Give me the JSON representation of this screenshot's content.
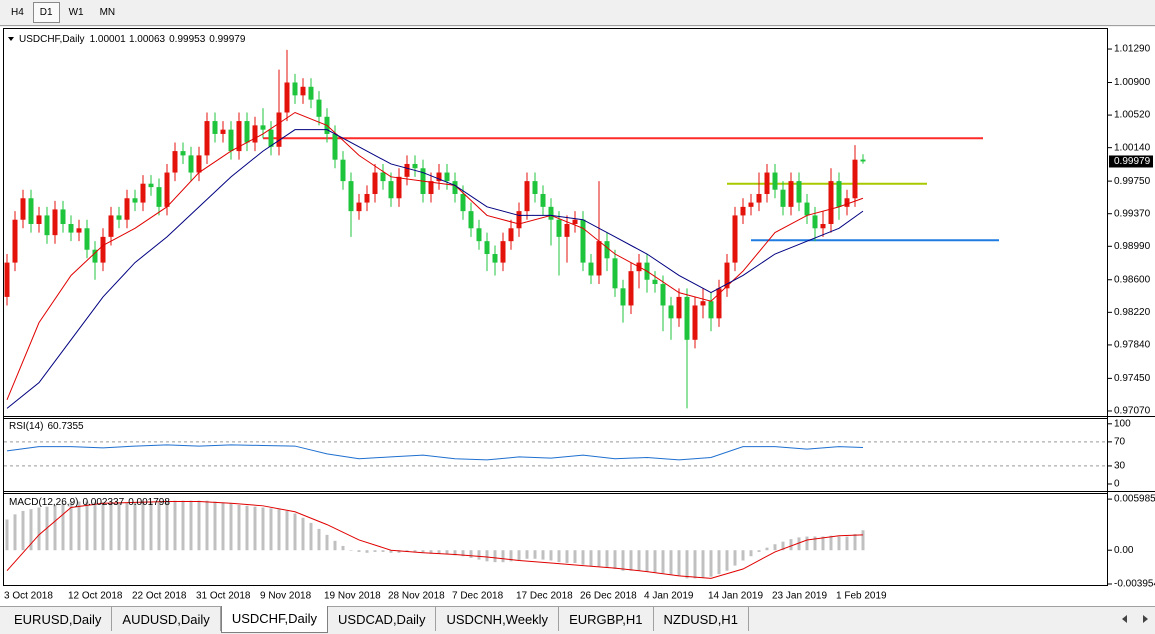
{
  "toolbar": {
    "buttons": [
      "H4",
      "D1",
      "W1",
      "MN"
    ],
    "active": 1
  },
  "chart_data": [
    {
      "type": "candlestick",
      "title": "USDCHF,Daily",
      "up_color": "#e3120b",
      "down_color": "#1ec43c",
      "categories": [
        "3 Oct 2018",
        null,
        null,
        null,
        null,
        null,
        null,
        null,
        "12 Oct 2018",
        null,
        null,
        null,
        null,
        null,
        null,
        null,
        "22 Oct 2018",
        null,
        null,
        null,
        null,
        null,
        null,
        null,
        "31 Oct 2018",
        null,
        null,
        null,
        null,
        null,
        null,
        null,
        "9 Nov 2018",
        null,
        null,
        null,
        null,
        null,
        null,
        null,
        "19 Nov 2018",
        null,
        null,
        null,
        null,
        null,
        null,
        null,
        "28 Nov 2018",
        null,
        null,
        null,
        null,
        null,
        null,
        null,
        "7 Dec 2018",
        null,
        null,
        null,
        null,
        null,
        null,
        null,
        "17 Dec 2018",
        null,
        null,
        null,
        null,
        null,
        null,
        null,
        "26 Dec 2018",
        null,
        null,
        null,
        null,
        null,
        null,
        null,
        "4 Jan 2019",
        null,
        null,
        null,
        null,
        null,
        null,
        null,
        "14 Jan 2019",
        null,
        null,
        null,
        null,
        null,
        null,
        null,
        "23 Jan 2019",
        null,
        null,
        null,
        null,
        null,
        null,
        null,
        "1 Feb 2019",
        null,
        null,
        null
      ],
      "open": [
        0.984,
        0.988,
        0.993,
        0.9955,
        0.9925,
        0.9935,
        0.9912,
        0.9942,
        0.9925,
        0.9915,
        0.992,
        0.9895,
        0.988,
        0.991,
        0.9935,
        0.993,
        0.9955,
        0.995,
        0.9972,
        0.9968,
        0.9945,
        0.9985,
        1.001,
        1.0005,
        0.9985,
        1.0005,
        1.0045,
        1.003,
        1.0035,
        1.001,
        1.0045,
        1.002,
        1.004,
        1.0035,
        1.0015,
        1.0055,
        1.009,
        1.0075,
        1.0085,
        1.007,
        1.005,
        1.003,
        1.0,
        0.9975,
        0.994,
        0.995,
        0.996,
        0.9985,
        0.9975,
        0.9955,
        0.998,
        0.9995,
        0.999,
        0.996,
        0.9975,
        0.9985,
        0.9975,
        0.996,
        0.994,
        0.992,
        0.9905,
        0.989,
        0.988,
        0.9905,
        0.992,
        0.994,
        0.9975,
        0.996,
        0.9945,
        0.993,
        0.991,
        0.9925,
        0.993,
        0.988,
        0.9865,
        0.9905,
        0.9885,
        0.985,
        0.983,
        0.987,
        0.988,
        0.986,
        0.9855,
        0.983,
        0.9815,
        0.984,
        0.979,
        0.983,
        0.9835,
        0.9815,
        0.985,
        0.988,
        0.9935,
        0.9945,
        0.995,
        0.996,
        0.9985,
        0.9965,
        0.9945,
        0.9975,
        0.995,
        0.9935,
        0.992,
        0.9925,
        0.9975,
        0.9945,
        0.9955,
        1.00001
      ],
      "high": [
        0.989,
        0.994,
        0.9965,
        0.9965,
        0.9945,
        0.9945,
        0.9952,
        0.9952,
        0.9935,
        0.993,
        0.993,
        0.9905,
        0.992,
        0.9945,
        0.9945,
        0.9965,
        0.9965,
        0.9982,
        0.9982,
        0.9978,
        0.9995,
        1.002,
        1.002,
        1.0015,
        1.0015,
        1.0055,
        1.0055,
        1.0045,
        1.0045,
        1.0055,
        1.0055,
        1.005,
        1.006,
        1.0045,
        1.0105,
        1.0128,
        1.01,
        1.0095,
        1.0095,
        1.008,
        1.006,
        1.004,
        1.001,
        0.9985,
        0.996,
        0.997,
        0.9995,
        0.9995,
        0.9985,
        0.999,
        1.0005,
        1.0005,
        1.0,
        0.9985,
        0.9995,
        0.9995,
        0.9985,
        0.997,
        0.995,
        0.993,
        0.9915,
        0.99,
        0.9915,
        0.993,
        0.995,
        0.9985,
        0.9985,
        0.997,
        0.9955,
        0.994,
        0.9935,
        0.994,
        0.994,
        0.989,
        0.9975,
        0.9915,
        0.9895,
        0.986,
        0.988,
        0.989,
        0.989,
        0.987,
        0.9865,
        0.984,
        0.985,
        0.985,
        0.984,
        0.985,
        0.9845,
        0.986,
        0.989,
        0.9945,
        0.9955,
        0.996,
        0.9985,
        0.9995,
        0.9995,
        0.9975,
        0.9985,
        0.9985,
        0.996,
        0.9945,
        0.994,
        0.999,
        0.9985,
        0.9965,
        1.0017,
        1.00063
      ],
      "low": [
        0.983,
        0.987,
        0.992,
        0.9915,
        0.9915,
        0.9902,
        0.9902,
        0.9915,
        0.9905,
        0.9905,
        0.9885,
        0.986,
        0.987,
        0.99,
        0.992,
        0.992,
        0.994,
        0.994,
        0.9958,
        0.9935,
        0.9935,
        0.9975,
        0.9995,
        0.9975,
        0.9975,
        0.9995,
        1.002,
        1.002,
        1.0,
        1.0,
        1.001,
        1.001,
        1.0025,
        1.0005,
        1.0005,
        1.0045,
        1.0065,
        1.0065,
        1.006,
        1.004,
        1.002,
        0.999,
        0.9965,
        0.991,
        0.993,
        0.994,
        0.995,
        0.9965,
        0.9945,
        0.9945,
        0.997,
        0.998,
        0.995,
        0.995,
        0.9965,
        0.9965,
        0.995,
        0.993,
        0.991,
        0.9895,
        0.987,
        0.9865,
        0.987,
        0.9895,
        0.991,
        0.993,
        0.995,
        0.9935,
        0.99,
        0.9865,
        0.988,
        0.9915,
        0.987,
        0.9855,
        0.9855,
        0.987,
        0.984,
        0.981,
        0.982,
        0.985,
        0.9845,
        0.9845,
        0.98,
        0.979,
        0.9805,
        0.971,
        0.978,
        0.9815,
        0.98,
        0.9805,
        0.984,
        0.987,
        0.9925,
        0.9935,
        0.994,
        0.995,
        0.9955,
        0.9935,
        0.9935,
        0.994,
        0.9925,
        0.9905,
        0.991,
        0.9915,
        0.993,
        0.9935,
        0.9945,
        0.99953
      ],
      "close": [
        0.988,
        0.993,
        0.9955,
        0.9925,
        0.9935,
        0.9912,
        0.9942,
        0.9925,
        0.9915,
        0.992,
        0.9895,
        0.988,
        0.991,
        0.9935,
        0.993,
        0.9955,
        0.995,
        0.9972,
        0.9968,
        0.9945,
        0.9985,
        1.001,
        1.0005,
        0.9985,
        1.0005,
        1.0045,
        1.003,
        1.0035,
        1.001,
        1.0045,
        1.002,
        1.004,
        1.0035,
        1.0015,
        1.0055,
        1.009,
        1.0075,
        1.0085,
        1.007,
        1.005,
        1.003,
        1.0,
        0.9975,
        0.994,
        0.995,
        0.996,
        0.9985,
        0.9975,
        0.9955,
        0.998,
        0.9995,
        0.999,
        0.996,
        0.9975,
        0.9985,
        0.9975,
        0.996,
        0.994,
        0.992,
        0.9905,
        0.989,
        0.988,
        0.9905,
        0.992,
        0.994,
        0.9975,
        0.996,
        0.9945,
        0.993,
        0.991,
        0.9925,
        0.993,
        0.988,
        0.9865,
        0.9905,
        0.9885,
        0.985,
        0.983,
        0.987,
        0.988,
        0.986,
        0.9855,
        0.983,
        0.9815,
        0.984,
        0.979,
        0.983,
        0.9835,
        0.9815,
        0.985,
        0.988,
        0.9935,
        0.9945,
        0.995,
        0.996,
        0.9985,
        0.9965,
        0.9945,
        0.9975,
        0.995,
        0.9935,
        0.992,
        0.9925,
        0.9975,
        0.9945,
        0.9955,
        1.0,
        0.99979
      ],
      "series": [
        {
          "color": "#e00000",
          "x": [
            0,
            4,
            8,
            12,
            16,
            20,
            24,
            28,
            32,
            36,
            40,
            44,
            48,
            52,
            56,
            60,
            64,
            68,
            72,
            76,
            80,
            84,
            88,
            92,
            96,
            100,
            104,
            107
          ],
          "values": [
            0.972,
            0.981,
            0.9865,
            0.99,
            0.992,
            0.9945,
            0.9985,
            1.001,
            1.003,
            1.0055,
            1.004,
            1.0005,
            0.998,
            0.9975,
            0.997,
            0.9935,
            0.9925,
            0.9935,
            0.992,
            0.989,
            0.987,
            0.9845,
            0.9835,
            0.987,
            0.9915,
            0.9935,
            0.9945,
            0.9955
          ]
        },
        {
          "color": "#000080",
          "x": [
            0,
            4,
            8,
            12,
            16,
            20,
            24,
            28,
            32,
            36,
            40,
            44,
            48,
            52,
            56,
            60,
            64,
            68,
            72,
            76,
            80,
            84,
            88,
            92,
            96,
            100,
            104,
            107
          ],
          "values": [
            0.971,
            0.974,
            0.979,
            0.984,
            0.988,
            0.991,
            0.9945,
            0.998,
            1.001,
            1.0035,
            1.0035,
            1.0015,
            0.9995,
            0.9985,
            0.997,
            0.9945,
            0.9935,
            0.9935,
            0.993,
            0.991,
            0.989,
            0.9865,
            0.9845,
            0.9865,
            0.989,
            0.9905,
            0.992,
            0.994
          ]
        }
      ],
      "hlines": [
        {
          "value": 1.0025,
          "color": "#ff2a2a",
          "from": 32,
          "to": 122
        },
        {
          "value": 0.9972,
          "color": "#a8c800",
          "from": 90,
          "to": 115
        },
        {
          "value": 0.9906,
          "color": "#1e7be0",
          "from": 93,
          "to": 124
        }
      ],
      "ylim": [
        0.97023,
        1.01512
      ],
      "yticks": [
        {
          "value": 1.0129,
          "label": "1.01290"
        },
        {
          "value": 1.009,
          "label": "1.00900"
        },
        {
          "value": 1.0052,
          "label": "1.00520"
        },
        {
          "value": 1.0014,
          "label": "1.00140"
        },
        {
          "value": 0.9975,
          "label": "0.99750"
        },
        {
          "value": 0.9937,
          "label": "0.99370"
        },
        {
          "value": 0.9899,
          "label": "0.98990"
        },
        {
          "value": 0.986,
          "label": "0.98600"
        },
        {
          "value": 0.9822,
          "label": "0.98220"
        },
        {
          "value": 0.9784,
          "label": "0.97840"
        },
        {
          "value": 0.9745,
          "label": "0.97450"
        },
        {
          "value": 0.9707,
          "label": "0.97070"
        }
      ]
    },
    {
      "type": "line",
      "title": "RSI(14)",
      "color": "#1e6fd0",
      "x": [
        0,
        4,
        8,
        12,
        16,
        20,
        24,
        28,
        32,
        36,
        40,
        44,
        48,
        52,
        56,
        60,
        64,
        68,
        72,
        76,
        80,
        84,
        88,
        92,
        96,
        100,
        104,
        107
      ],
      "values": [
        55,
        62,
        62,
        60,
        63,
        65,
        63,
        65,
        64,
        63,
        50,
        42,
        45,
        48,
        42,
        40,
        45,
        43,
        48,
        42,
        44,
        40,
        44,
        62,
        62,
        58,
        62,
        60.7355
      ],
      "ylim": [
        -10,
        108
      ],
      "yticks": [
        100,
        70,
        30,
        0
      ]
    },
    {
      "type": "macd",
      "title": "MACD(12,26,9)",
      "color": "#c0c0c0",
      "values": [
        0.0036,
        0.0042,
        0.0046,
        0.0048,
        0.005,
        0.0051,
        0.0053,
        0.0055,
        0.0056,
        0.0057,
        0.0057,
        0.0056,
        0.0056,
        0.0056,
        0.0056,
        0.0056,
        0.0056,
        0.0057,
        0.0057,
        0.0057,
        0.0057,
        0.0058,
        0.0058,
        0.0058,
        0.0058,
        0.0058,
        0.0057,
        0.0056,
        0.0055,
        0.0053,
        0.0052,
        0.0051,
        0.005,
        0.0049,
        0.0048,
        0.0046,
        0.0043,
        0.0038,
        0.0032,
        0.0025,
        0.0018,
        0.0011,
        0.0005,
        0.0,
        -0.0002,
        -0.0003,
        -0.0002,
        -0.0002,
        -0.0003,
        -0.0003,
        -0.0002,
        -0.0002,
        -0.0003,
        -0.0004,
        -0.0004,
        -0.0005,
        -0.0006,
        -0.0007,
        -0.0009,
        -0.0011,
        -0.0013,
        -0.0014,
        -0.0014,
        -0.0013,
        -0.0012,
        -0.001,
        -0.001,
        -0.0011,
        -0.0012,
        -0.0014,
        -0.0015,
        -0.0015,
        -0.0017,
        -0.0019,
        -0.0019,
        -0.002,
        -0.0022,
        -0.0024,
        -0.0024,
        -0.0024,
        -0.0025,
        -0.0026,
        -0.0027,
        -0.0029,
        -0.003,
        -0.0033,
        -0.0033,
        -0.0032,
        -0.0031,
        -0.0028,
        -0.0024,
        -0.0018,
        -0.0012,
        -0.0007,
        -0.0002,
        0.0003,
        0.0007,
        0.001,
        0.0013,
        0.0015,
        0.0016,
        0.0016,
        0.0016,
        0.0017,
        0.0016,
        0.0016,
        0.0019,
        0.002337
      ],
      "signal": {
        "color": "#e00000",
        "x": [
          0,
          4,
          8,
          12,
          16,
          20,
          24,
          28,
          32,
          36,
          40,
          44,
          48,
          52,
          56,
          60,
          64,
          68,
          72,
          76,
          80,
          84,
          88,
          92,
          96,
          100,
          104,
          107
        ],
        "values": [
          -0.0024,
          0.0018,
          0.005,
          0.0055,
          0.0056,
          0.0057,
          0.0057,
          0.0055,
          0.0052,
          0.0045,
          0.003,
          0.0012,
          0.0,
          -0.0003,
          -0.0005,
          -0.0008,
          -0.0012,
          -0.0015,
          -0.0018,
          -0.0021,
          -0.0025,
          -0.003,
          -0.0033,
          -0.0022,
          -0.0002,
          0.0012,
          0.0017,
          0.001798
        ]
      },
      "ylim": [
        -0.00419,
        0.006583
      ],
      "yticks": [
        0.005985,
        {
          "value": 0,
          "label": "0.00"
        },
        -0.003954
      ]
    }
  ],
  "tabs": [
    "EURUSD,Daily",
    "AUDUSD,Daily",
    "USDCHF,Daily",
    "USDCAD,Daily",
    "USDCNH,Weekly",
    "EURGBP,H1",
    "NZDUSD,H1"
  ],
  "active_tab": 2
}
